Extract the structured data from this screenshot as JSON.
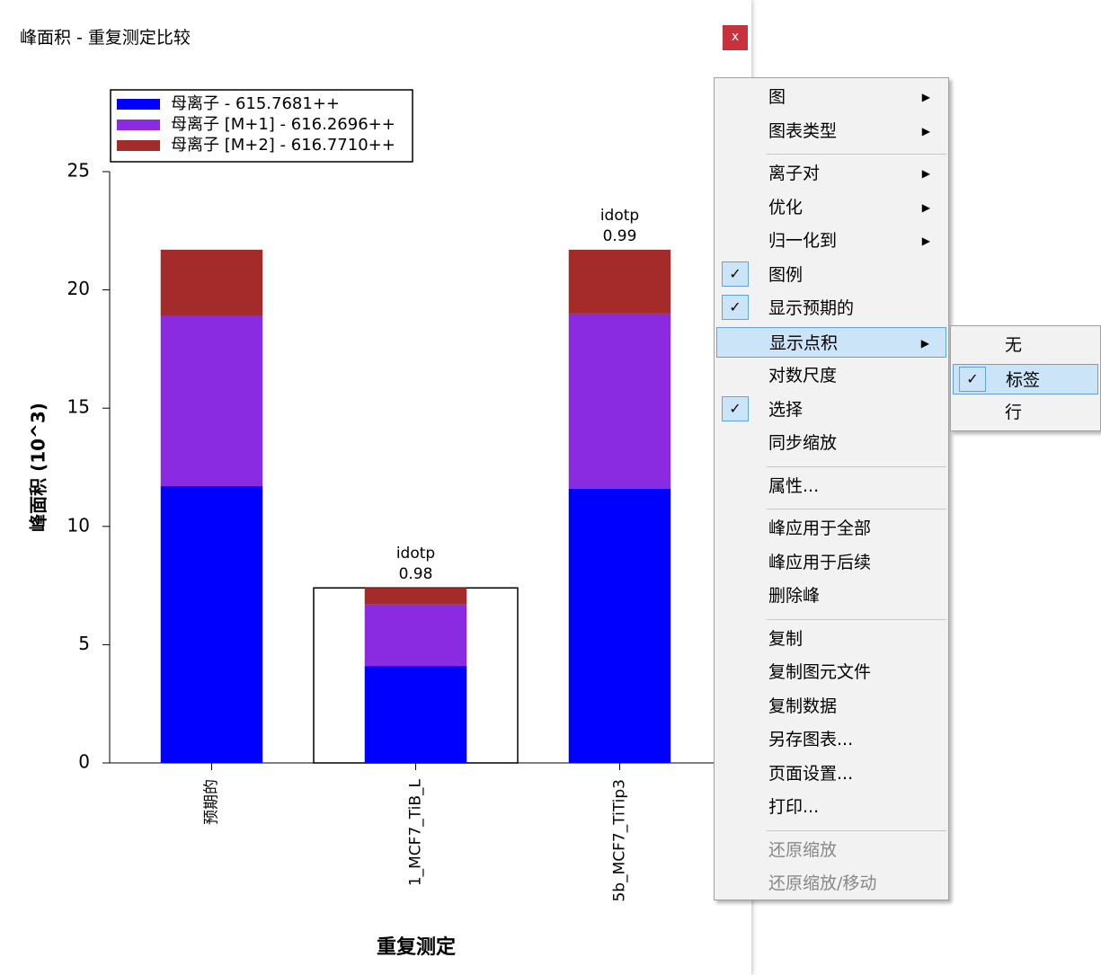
{
  "window": {
    "title": "峰面积 - 重复测定比较",
    "close": "x"
  },
  "chart_data": {
    "type": "stacked-bar",
    "x_label": "重复测定",
    "y_label": "峰面积 (10^3)",
    "categories": [
      "预期的",
      "1_MCF7_TiB_L",
      "5b_MCF7_TiTip3"
    ],
    "series": [
      {
        "name": "母离子 - 615.7681++",
        "color": "#0000ff",
        "values": [
          11.7,
          4.1,
          11.6
        ]
      },
      {
        "name": "母离子 [M+1] - 616.2696++",
        "color": "#8a2be2",
        "values": [
          7.2,
          2.6,
          7.4
        ]
      },
      {
        "name": "母离子 [M+2] - 616.7710++",
        "color": "#a52a2a",
        "values": [
          2.8,
          0.7,
          2.7
        ]
      }
    ],
    "outline_values": [
      null,
      7.4,
      null
    ],
    "annotation_label": "idotp",
    "annotation_values": [
      null,
      0.98,
      0.99
    ],
    "ylim": [
      0,
      25
    ],
    "yticks": [
      0,
      5,
      10,
      15,
      20,
      25
    ],
    "legend": "upper left"
  },
  "menu": {
    "groups": [
      [
        {
          "label": "图",
          "submenu": true
        },
        {
          "label": "图表类型",
          "submenu": true
        }
      ],
      [
        {
          "label": "离子对",
          "submenu": true
        },
        {
          "label": "优化",
          "submenu": true
        },
        {
          "label": "归一化到",
          "submenu": true
        },
        {
          "label": "图例",
          "checked": true
        },
        {
          "label": "显示预期的",
          "checked": true
        },
        {
          "label": "显示点积",
          "submenu": true,
          "highlighted": true
        },
        {
          "label": "对数尺度"
        },
        {
          "label": "选择",
          "checked": true
        },
        {
          "label": "同步缩放"
        }
      ],
      [
        {
          "label": "属性..."
        }
      ],
      [
        {
          "label": "峰应用于全部"
        },
        {
          "label": "峰应用于后续"
        },
        {
          "label": "删除峰"
        }
      ],
      [
        {
          "label": "复制"
        },
        {
          "label": "复制图元文件"
        },
        {
          "label": "复制数据"
        },
        {
          "label": "另存图表..."
        },
        {
          "label": "页面设置..."
        },
        {
          "label": "打印..."
        }
      ],
      [
        {
          "label": "还原缩放",
          "disabled": true
        },
        {
          "label": "还原缩放/移动",
          "disabled": true
        }
      ]
    ]
  },
  "submenu": {
    "items": [
      {
        "label": "无"
      },
      {
        "label": "标签",
        "checked": true,
        "highlighted": true
      },
      {
        "label": "行"
      }
    ]
  }
}
